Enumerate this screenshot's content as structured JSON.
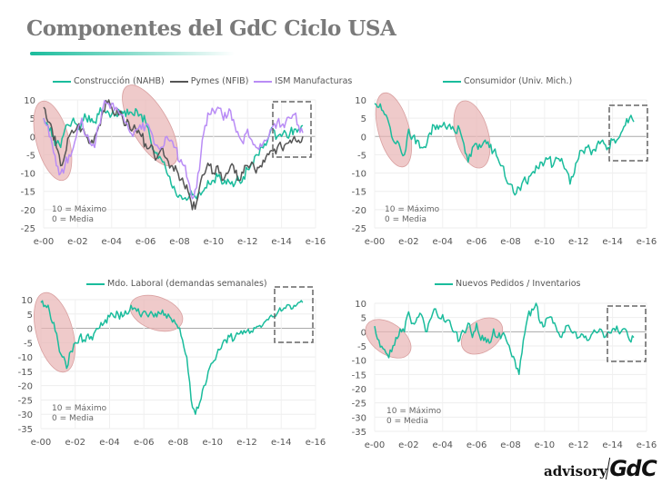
{
  "title": "Componentes del GdC Ciclo USA",
  "logo": {
    "left": "advisory",
    "right": "GdC"
  },
  "colors": {
    "construccion": "#1abc9c",
    "pymes": "#555555",
    "ism": "#b98cf5",
    "consumidor": "#1abc9c",
    "laboral": "#1abc9c",
    "pedidos": "#1abc9c",
    "highlight": "#e8b4b4",
    "box": "#666666"
  },
  "chart_data": [
    {
      "type": "line",
      "title": "",
      "x_start": 2000,
      "x_step": 0.25,
      "xticks": [
        "e-00",
        "e-02",
        "e-04",
        "e-06",
        "e-08",
        "e-10",
        "e-12",
        "e-14",
        "e-16"
      ],
      "ylim": [
        -25,
        10
      ],
      "yticks": [
        "10",
        "5",
        "0",
        "-5",
        "-10",
        "-15",
        "-20",
        "-25"
      ],
      "notes": [
        "10 = Máximo",
        "0 =  Media"
      ],
      "series": [
        {
          "name": "Construcción (NAHB)",
          "color": "#1abc9c",
          "values": [
            5,
            3,
            0,
            -2,
            -3,
            2,
            3,
            5,
            3,
            4,
            5,
            4,
            4,
            6,
            7,
            7,
            6,
            6,
            6,
            7,
            6,
            6,
            7,
            6,
            4,
            0,
            -4,
            -6,
            -7,
            -10,
            -13,
            -15,
            -16,
            -17,
            -17,
            -16,
            -17,
            -16,
            -14,
            -13,
            -12,
            -11,
            -13,
            -13,
            -13,
            -13,
            -12,
            -11,
            -9,
            -7,
            -5,
            -3,
            -2,
            0,
            2,
            0,
            0,
            1,
            1,
            2,
            2,
            3
          ]
        },
        {
          "name": "Pymes (NFIB)",
          "color": "#555555",
          "values": [
            8,
            4,
            2,
            -3,
            -8,
            -5,
            0,
            1,
            3,
            2,
            0,
            -2,
            0,
            3,
            7,
            9,
            8,
            6,
            7,
            3,
            4,
            2,
            1,
            0,
            -2,
            -3,
            -5,
            -5,
            -3,
            -6,
            -8,
            -8,
            -12,
            -13,
            -15,
            -20,
            -18,
            -12,
            -10,
            -8,
            -10,
            -8,
            -12,
            -10,
            -8,
            -10,
            -12,
            -10,
            -8,
            -7,
            -10,
            -8,
            -7,
            -5,
            -4,
            -3,
            -3,
            -2,
            -1,
            0,
            -1,
            0
          ]
        },
        {
          "name": "ISM Manufacturas",
          "color": "#b98cf5",
          "values": [
            5,
            3,
            -2,
            -8,
            -10,
            -8,
            -5,
            -3,
            2,
            5,
            0,
            -2,
            -3,
            3,
            8,
            9,
            9,
            8,
            6,
            4,
            2,
            0,
            2,
            2,
            3,
            2,
            -2,
            -3,
            -3,
            0,
            -1,
            -3,
            -7,
            -8,
            -12,
            -17,
            -14,
            -5,
            3,
            6,
            7,
            8,
            6,
            5,
            7,
            3,
            0,
            -2,
            2,
            -1,
            -3,
            -2,
            -1,
            0,
            3,
            4,
            3,
            4,
            5,
            6,
            3,
            1
          ]
        }
      ]
    },
    {
      "type": "line",
      "x_start": 2000,
      "x_step": 0.25,
      "xticks": [
        "e-00",
        "e-02",
        "e-04",
        "e-06",
        "e-08",
        "e-10",
        "e-12",
        "e-14",
        "e-16"
      ],
      "ylim": [
        -25,
        10
      ],
      "yticks": [
        "10",
        "5",
        "0",
        "-5",
        "-10",
        "-15",
        "-20",
        "-25"
      ],
      "notes": [
        "10 = Máximo",
        "0 =  Media"
      ],
      "series": [
        {
          "name": "Consumidor (Univ. Mich.)",
          "color": "#1abc9c",
          "values": [
            9,
            8,
            7,
            5,
            0,
            -2,
            -3,
            -5,
            2,
            0,
            -1,
            -3,
            -3,
            1,
            3,
            2,
            3,
            2,
            2,
            1,
            2,
            -2,
            -7,
            -3,
            -2,
            -3,
            -1,
            -3,
            -4,
            -6,
            -8,
            -12,
            -13,
            -16,
            -14,
            -12,
            -13,
            -10,
            -8,
            -7,
            -7,
            -6,
            -8,
            -6,
            -6,
            -9,
            -13,
            -10,
            -6,
            -4,
            -3,
            -5,
            -4,
            -2,
            -2,
            -3,
            -1,
            -1,
            1,
            3,
            5,
            4
          ]
        }
      ]
    },
    {
      "type": "line",
      "x_start": 2000,
      "x_step": 0.25,
      "xticks": [
        "e-00",
        "e-02",
        "e-04",
        "e-06",
        "e-08",
        "e-10",
        "e-12",
        "e-14",
        "e-16"
      ],
      "ylim": [
        -35,
        10
      ],
      "yticks": [
        "10",
        "5",
        "0",
        "-5",
        "-10",
        "-15",
        "-20",
        "-25",
        "-30",
        "-35"
      ],
      "notes": [
        "10 = Máximo",
        "0 =  Media"
      ],
      "series": [
        {
          "name": "Mdo. Laboral (demandas semanales)",
          "color": "#1abc9c",
          "values": [
            9,
            8,
            6,
            2,
            -5,
            -10,
            -14,
            -8,
            -5,
            -3,
            -4,
            -2,
            -4,
            0,
            2,
            3,
            4,
            4,
            5,
            4,
            5,
            8,
            7,
            5,
            6,
            4,
            5,
            4,
            5,
            5,
            4,
            3,
            0,
            -4,
            -10,
            -25,
            -30,
            -26,
            -20,
            -15,
            -12,
            -9,
            -7,
            -4,
            -3,
            -4,
            -2,
            -2,
            -1,
            -1,
            0,
            1,
            2,
            3,
            4,
            5,
            6,
            7,
            8,
            8,
            9,
            9
          ]
        }
      ]
    },
    {
      "type": "line",
      "x_start": 2000,
      "x_step": 0.25,
      "xticks": [
        "e-00",
        "e-02",
        "e-04",
        "e-06",
        "e-08",
        "e-10",
        "e-12",
        "e-14",
        "e-16"
      ],
      "ylim": [
        -35,
        10
      ],
      "yticks": [
        "10",
        "5",
        "0",
        "-5",
        "-10",
        "-15",
        "-20",
        "-25",
        "-30",
        "-35"
      ],
      "notes": [
        "10 = Máximo",
        "0 =  Media"
      ],
      "series": [
        {
          "name": "Nuevos Pedidos / Inventarios",
          "color": "#1abc9c",
          "values": [
            2,
            -3,
            -6,
            -8,
            -7,
            -2,
            1,
            0,
            7,
            3,
            5,
            6,
            0,
            4,
            8,
            5,
            6,
            4,
            2,
            0,
            -3,
            0,
            3,
            -2,
            3,
            -3,
            -2,
            -4,
            1,
            -2,
            -1,
            -3,
            -7,
            -10,
            -15,
            -3,
            5,
            8,
            10,
            3,
            2,
            5,
            3,
            0,
            -2,
            2,
            1,
            0,
            -2,
            -1,
            -3,
            -1,
            0,
            1,
            -2,
            0,
            1,
            2,
            0,
            1,
            -3,
            -2
          ]
        }
      ]
    }
  ]
}
